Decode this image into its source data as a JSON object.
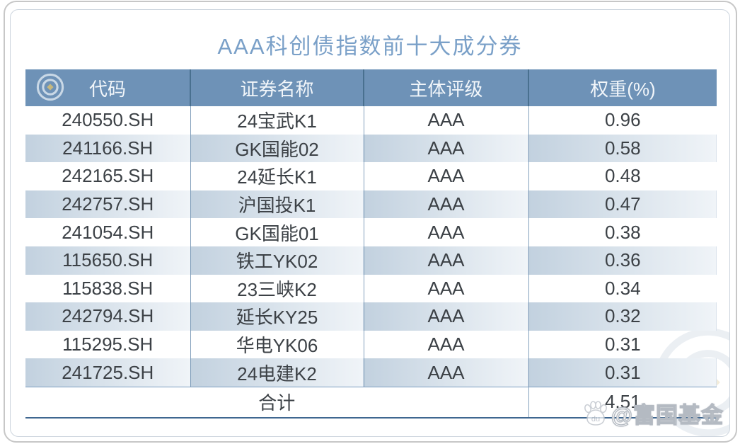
{
  "chart_data": {
    "type": "table",
    "title": "AAA科创债指数前十大成分券",
    "columns": [
      "代码",
      "证券名称",
      "主体评级",
      "权重(%)"
    ],
    "rows": [
      [
        "240550.SH",
        "24宝武K1",
        "AAA",
        "0.96"
      ],
      [
        "241166.SH",
        "GK国能02",
        "AAA",
        "0.58"
      ],
      [
        "242165.SH",
        "24延长K1",
        "AAA",
        "0.48"
      ],
      [
        "242757.SH",
        "沪国投K1",
        "AAA",
        "0.47"
      ],
      [
        "241054.SH",
        "GK国能01",
        "AAA",
        "0.38"
      ],
      [
        "115650.SH",
        "铁工YK02",
        "AAA",
        "0.36"
      ],
      [
        "115838.SH",
        "23三峡K2",
        "AAA",
        "0.34"
      ],
      [
        "242794.SH",
        "延长KY25",
        "AAA",
        "0.32"
      ],
      [
        "115295.SH",
        "华电YK06",
        "AAA",
        "0.31"
      ],
      [
        "241725.SH",
        "24电建K2",
        "AAA",
        "0.31"
      ]
    ],
    "total": {
      "label": "合计",
      "value": "4.51"
    },
    "layout": {
      "stripe": "alternating rows shaded, per-cell left-to-right fade",
      "grid": "vertical dividers only"
    }
  },
  "watermark": {
    "du": "du",
    "handle": "@富国基金"
  },
  "colors": {
    "header-bg": "#6e92b7",
    "header-text": "#f2f6fa",
    "title-text": "#7aa0c8",
    "body-text": "#3c4146",
    "stripe-start": "#c2d1df",
    "stripe-end": "#f0f4f8",
    "total-border": "#3f6790",
    "logo-gold": "#c6b87f"
  }
}
